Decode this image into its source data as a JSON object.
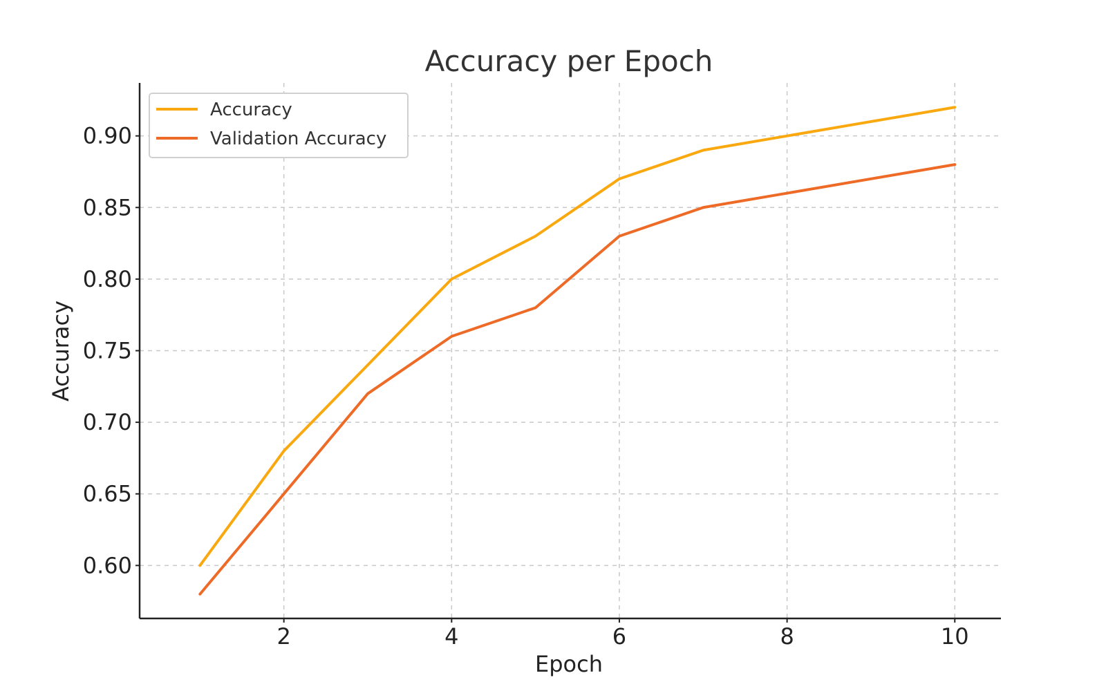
{
  "chart_data": {
    "type": "line",
    "title": "Accuracy per Epoch",
    "xlabel": "Epoch",
    "ylabel": "Accuracy",
    "x": [
      1,
      2,
      3,
      4,
      5,
      6,
      7,
      8,
      9,
      10
    ],
    "series": [
      {
        "name": "Accuracy",
        "color": "#F9A90F",
        "values": [
          0.6,
          0.68,
          0.74,
          0.8,
          0.83,
          0.87,
          0.89,
          0.9,
          0.91,
          0.92
        ]
      },
      {
        "name": "Validation Accuracy",
        "color": "#EE6A27",
        "values": [
          0.58,
          0.65,
          0.72,
          0.76,
          0.78,
          0.83,
          0.85,
          0.86,
          0.87,
          0.88
        ]
      }
    ],
    "xlim": [
      0.28,
      10.55
    ],
    "ylim": [
      0.563,
      0.937
    ],
    "xticks": [
      2,
      4,
      6,
      8,
      10
    ],
    "xtick_labels": [
      "2",
      "4",
      "6",
      "8",
      "10"
    ],
    "yticks": [
      0.6,
      0.65,
      0.7,
      0.75,
      0.8,
      0.85,
      0.9
    ],
    "ytick_labels": [
      "0.60",
      "0.65",
      "0.70",
      "0.75",
      "0.80",
      "0.85",
      "0.90"
    ],
    "grid": true,
    "grid_style": "dashed",
    "legend_position": "top-left"
  }
}
